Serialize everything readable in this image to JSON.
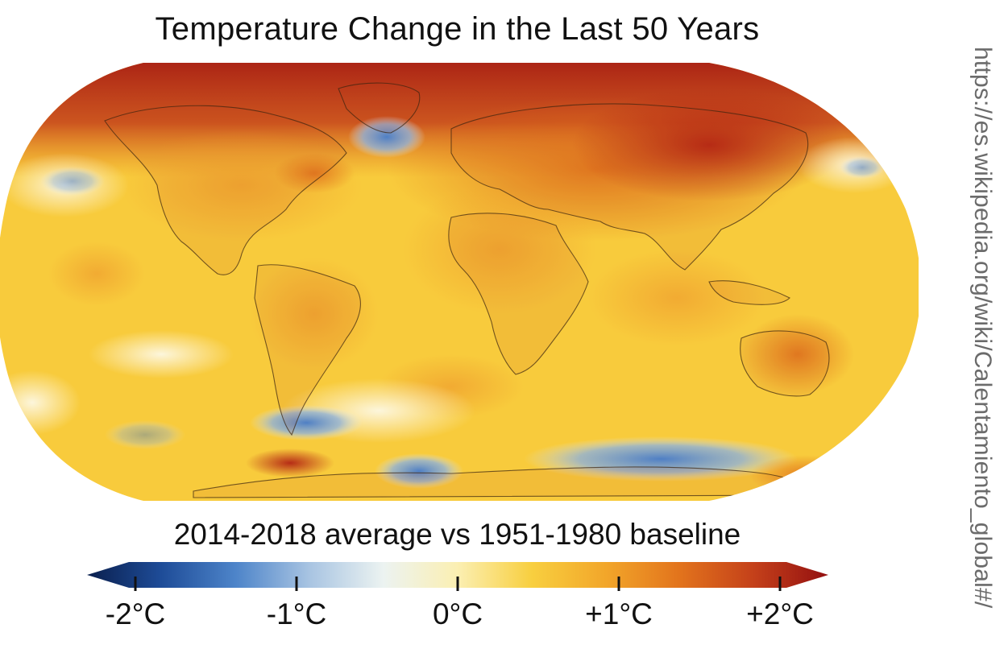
{
  "title": "Temperature Change in the Last 50 Years",
  "subtitle": "2014-2018 average vs 1951-1980 baseline",
  "source_url": "https://es.wikipedia.org/wiki/Calentamiento_global#/",
  "legend": {
    "min": -2,
    "max": 2,
    "unit": "°C",
    "ticks": [
      {
        "value": -2,
        "label": "-2°C"
      },
      {
        "value": -1,
        "label": "-1°C"
      },
      {
        "value": 0,
        "label": "0°C"
      },
      {
        "value": 1,
        "label": "+1°C"
      },
      {
        "value": 2,
        "label": "+2°C"
      }
    ],
    "colors": [
      "#0a1f4d",
      "#1e4c98",
      "#4d84c9",
      "#a8c4e2",
      "#ecf3f1",
      "#fbefb2",
      "#f8cf3f",
      "#f2a62a",
      "#e2731c",
      "#c4401a",
      "#930f10"
    ]
  }
}
